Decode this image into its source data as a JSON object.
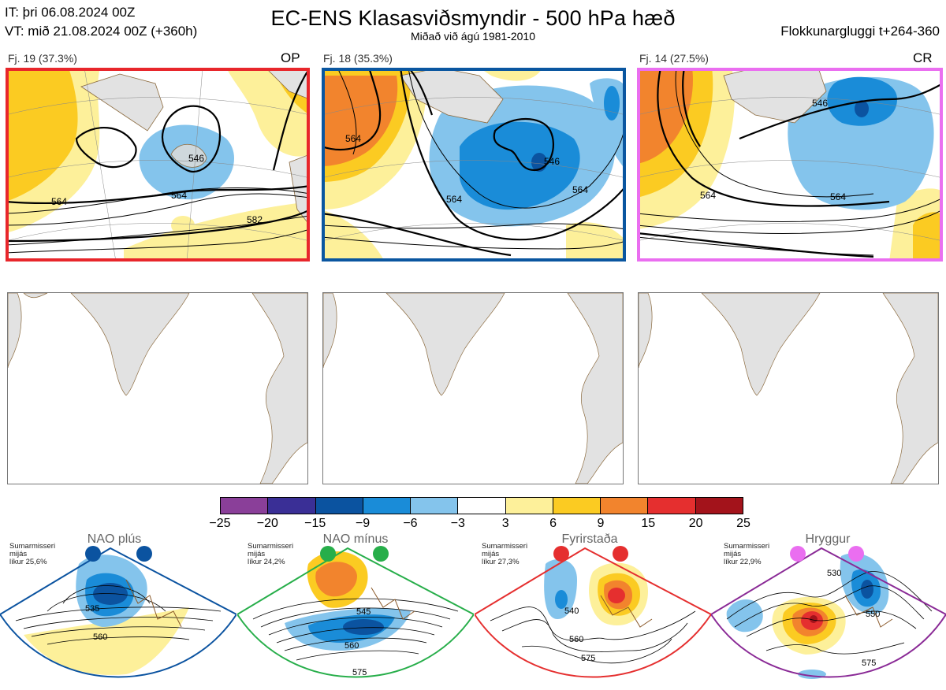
{
  "header": {
    "it_line": "IT: þri 06.08.2024 00Z",
    "vt_line": "VT: mið 21.08.2024 00Z  (+360h)",
    "title": "EC-ENS Klasasviðsmyndir - 500 hPa hæð",
    "subtitle": "Miðað við ágú 1981-2010",
    "window": "Flokkunargluggi t+264-360"
  },
  "clusters": [
    {
      "caption": "Fj. 19 (37.3%)",
      "tag": "OP",
      "frame_color": "#e8262b",
      "labels": [
        "564",
        "546",
        "582",
        "564"
      ]
    },
    {
      "caption": "Fj. 18 (35.3%)",
      "tag": "",
      "frame_color": "#0a56a0",
      "labels": [
        "564",
        "564",
        "546",
        "564"
      ]
    },
    {
      "caption": "Fj. 14 (27.5%)",
      "tag": "CR",
      "frame_color": "#ea6ef0",
      "labels": [
        "546",
        "564",
        "564"
      ]
    }
  ],
  "colorbar": {
    "ticks": [
      "−25",
      "−20",
      "−15",
      "−9",
      "−6",
      "−3",
      "3",
      "6",
      "9",
      "15",
      "20",
      "25"
    ],
    "colors": [
      "#8a3f99",
      "#3a2f96",
      "#0b53a0",
      "#1a8cd8",
      "#84c4ec",
      "#ffffff",
      "#fdf09a",
      "#fbcb22",
      "#f2842d",
      "#e52f2f",
      "#a3131b"
    ]
  },
  "regimes": [
    {
      "name": "NAO plús",
      "note": [
        "Sumarmisseri",
        "mijás",
        "líkur 25,6%"
      ],
      "color": "#0b53a0",
      "frame": "#0b53a0",
      "labels": [
        "535",
        "560"
      ]
    },
    {
      "name": "NAO mínus",
      "note": [
        "Sumarmisseri",
        "mijás",
        "líkur 24,2%"
      ],
      "color": "#27ae4a",
      "frame": "#27ae4a",
      "labels": [
        "545",
        "560",
        "575"
      ]
    },
    {
      "name": "Fyrirstaða",
      "note": [
        "Sumarmisseri",
        "mijás",
        "líkur 27,3%"
      ],
      "color": "#e52f2f",
      "frame": "#e52f2f",
      "labels": [
        "540",
        "560",
        "575"
      ]
    },
    {
      "name": "Hryggur",
      "note": [
        "Sumarmisseri",
        "mijás",
        "líkur 22,9%"
      ],
      "color": "#ea6ef0",
      "frame": "#8a2a96",
      "labels": [
        "530",
        "550",
        "575"
      ]
    }
  ]
}
